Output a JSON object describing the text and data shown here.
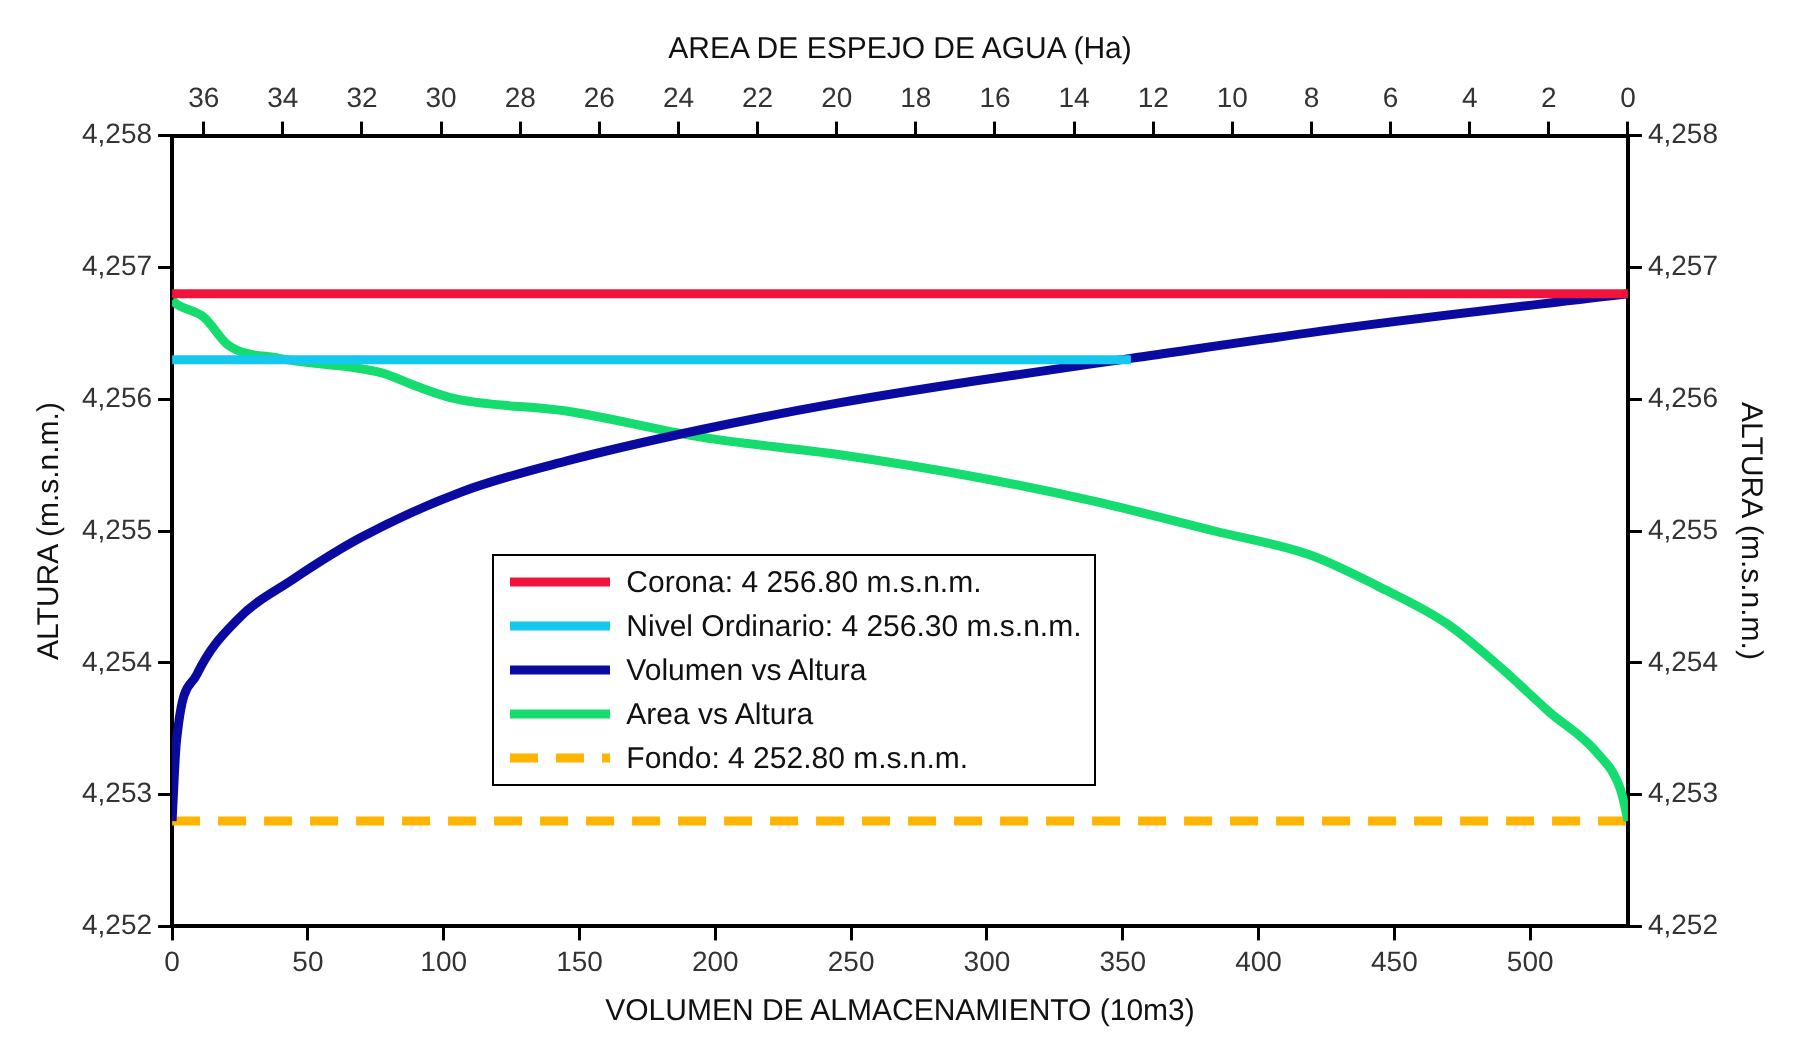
{
  "chart_data": {
    "type": "line",
    "xlabel": "VOLUMEN DE ALMACENAMIENTO (10m3)",
    "x2label": "AREA DE ESPEJO DE AGUA (Ha)",
    "ylabel": "ALTURA (m.s.n.m.)",
    "y2label": "ALTURA (m.s.n.m.)",
    "xlim": [
      0,
      536
    ],
    "xticks": [
      0,
      50,
      100,
      150,
      200,
      250,
      300,
      350,
      400,
      450,
      500
    ],
    "x2lim": [
      36.8,
      0
    ],
    "x2ticks": [
      36,
      34,
      32,
      30,
      28,
      26,
      24,
      22,
      20,
      18,
      16,
      14,
      12,
      10,
      8,
      6,
      4,
      2,
      0
    ],
    "ylim": [
      4252,
      4258
    ],
    "yticks": [
      {
        "value": 4252,
        "label": "4,252"
      },
      {
        "value": 4253,
        "label": "4,253"
      },
      {
        "value": 4254,
        "label": "4,254"
      },
      {
        "value": 4255,
        "label": "4,255"
      },
      {
        "value": 4256,
        "label": "4,256"
      },
      {
        "value": 4257,
        "label": "4,257"
      },
      {
        "value": 4258,
        "label": "4,258"
      }
    ],
    "y2lim": [
      4252,
      4258
    ],
    "y2ticks": [
      {
        "value": 4252,
        "label": "4,252"
      },
      {
        "value": 4253,
        "label": "4,253"
      },
      {
        "value": 4254,
        "label": "4,254"
      },
      {
        "value": 4255,
        "label": "4,255"
      },
      {
        "value": 4256,
        "label": "4,256"
      },
      {
        "value": 4257,
        "label": "4,257"
      },
      {
        "value": 4258,
        "label": "4,258"
      }
    ],
    "legend": "center",
    "series": [
      {
        "name": "Corona: 4 256.80 m.s.n.m.",
        "color": "#f0143c",
        "x": [
          0,
          536
        ],
        "values": [
          4256.8,
          4256.8
        ]
      },
      {
        "name": "Nivel Ordinario: 4 256.30 m.s.n.m.",
        "color": "#14c8f0",
        "x": [
          0,
          353
        ],
        "values": [
          4256.3,
          4256.3
        ]
      },
      {
        "name": "Volumen vs Altura",
        "color": "#0a0aa0",
        "x": [
          0,
          1.6,
          9.1,
          24.2,
          44.3,
          69.5,
          107,
          145,
          195,
          245,
          296,
          353,
          439,
          536
        ],
        "values": [
          4252.8,
          4253.4,
          4253.91,
          4254.33,
          4254.63,
          4254.95,
          4255.3,
          4255.53,
          4255.77,
          4255.97,
          4256.14,
          4256.31,
          4256.56,
          4256.8
        ]
      },
      {
        "name": "Area vs Altura",
        "color": "#14dc6e",
        "axis": "x2",
        "x": [
          36.8,
          36.68,
          35.99,
          35.38,
          34.09,
          31.5,
          30.64,
          29.6,
          26.84,
          23.39,
          19.96,
          16.49,
          13.56,
          10.45,
          8.05,
          6.31,
          4.59,
          3.2,
          2.0,
          0.79,
          0.19,
          0.02,
          0
        ],
        "values": [
          4256.75,
          4256.72,
          4256.62,
          4256.41,
          4256.31,
          4256.2,
          4256.1,
          4256.0,
          4255.91,
          4255.71,
          4255.58,
          4255.41,
          4255.23,
          4255.0,
          4254.82,
          4254.58,
          4254.3,
          4253.96,
          4253.63,
          4253.32,
          4253.04,
          4252.83,
          4252.8
        ]
      },
      {
        "name": "Fondo: 4 252.80 m.s.n.m.",
        "color": "#ffb400",
        "line_style": "dashed",
        "x": [
          0,
          536
        ],
        "values": [
          4252.8,
          4252.8
        ]
      }
    ]
  }
}
